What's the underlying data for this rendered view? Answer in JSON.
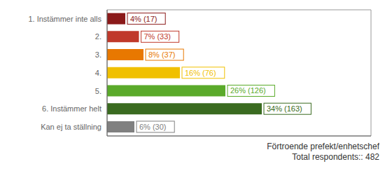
{
  "chart_data": {
    "type": "bar",
    "title": "Förtroende prefekt/enhetschef",
    "subtitle": "Total respondents:: 482",
    "orientation": "horizontal",
    "categories": [
      "1. Instämmer inte alls",
      "2.",
      "3.",
      "4.",
      "5.",
      "6. Instämmer helt",
      "Kan ej ta ställning"
    ],
    "values": [
      4,
      7,
      8,
      16,
      26,
      34,
      6
    ],
    "value_labels": [
      "4% (17)",
      "7% (33)",
      "8% (37)",
      "16% (76)",
      "26% (126)",
      "34% (163)",
      "6% (30)"
    ],
    "data_labels": true,
    "colors": [
      "#8b1a1a",
      "#c0392b",
      "#e87800",
      "#f0c000",
      "#5aaa2a",
      "#3a6b20",
      "#808080"
    ],
    "xlim": [
      0,
      58
    ],
    "xticks": [],
    "tick_labels": "y"
  }
}
